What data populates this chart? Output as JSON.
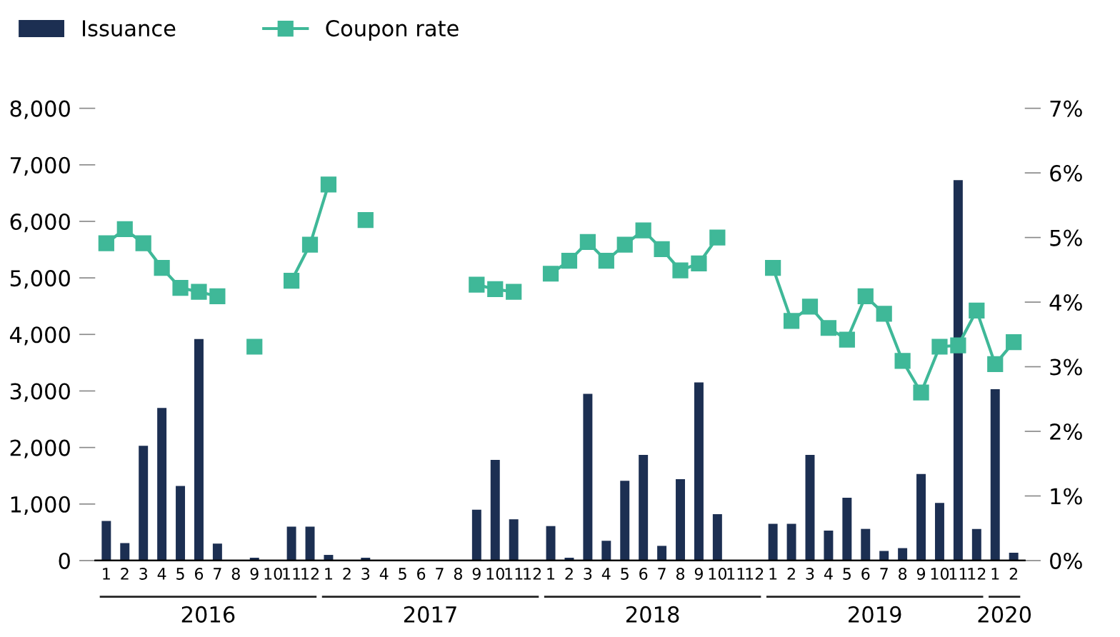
{
  "chart_data": {
    "type": "bar",
    "categories": [
      "1",
      "2",
      "3",
      "4",
      "5",
      "6",
      "7",
      "8",
      "9",
      "10",
      "11",
      "12",
      "1",
      "2",
      "3",
      "4",
      "5",
      "6",
      "7",
      "8",
      "9",
      "10",
      "11",
      "12",
      "1",
      "2",
      "3",
      "4",
      "5",
      "6",
      "7",
      "8",
      "9",
      "10",
      "11",
      "12",
      "1",
      "2",
      "3",
      "4",
      "5",
      "6",
      "7",
      "8",
      "9",
      "10",
      "11",
      "12",
      "1",
      "2"
    ],
    "series": [
      {
        "name": "Issuance",
        "color": "#1c2f52",
        "values": [
          700,
          310,
          2030,
          2700,
          1320,
          3920,
          300,
          0,
          50,
          0,
          600,
          600,
          100,
          0,
          50,
          0,
          0,
          0,
          0,
          0,
          900,
          1780,
          730,
          0,
          610,
          50,
          2950,
          350,
          1410,
          1870,
          260,
          1440,
          3150,
          820,
          0,
          0,
          650,
          650,
          1870,
          530,
          1110,
          560,
          170,
          220,
          1530,
          1020,
          6730,
          560,
          3030,
          140
        ]
      },
      {
        "name": "Coupon rate",
        "type": "line",
        "axis": "y2",
        "color": "#3fb898",
        "marker": "square",
        "values": [
          4.91,
          5.13,
          4.91,
          4.53,
          4.22,
          4.16,
          4.09,
          null,
          3.31,
          null,
          4.33,
          4.89,
          5.82,
          null,
          5.27,
          null,
          null,
          null,
          null,
          null,
          4.27,
          4.2,
          4.16,
          null,
          4.44,
          4.64,
          4.93,
          4.64,
          4.89,
          5.11,
          4.82,
          4.49,
          4.6,
          5.0,
          null,
          null,
          4.53,
          3.71,
          3.93,
          3.6,
          3.42,
          4.09,
          3.82,
          3.09,
          2.6,
          3.31,
          3.33,
          3.87,
          3.04,
          3.38
        ]
      }
    ],
    "ylim": [
      0,
      8000
    ],
    "yticks": [
      {
        "value": 0,
        "label": "0"
      },
      {
        "value": 1000,
        "label": "1,000"
      },
      {
        "value": 2000,
        "label": "2,000"
      },
      {
        "value": 3000,
        "label": "3,000"
      },
      {
        "value": 4000,
        "label": "4,000"
      },
      {
        "value": 5000,
        "label": "5,000"
      },
      {
        "value": 6000,
        "label": "6,000"
      },
      {
        "value": 7000,
        "label": "7,000"
      },
      {
        "value": 8000,
        "label": "8,000"
      }
    ],
    "y2lim": [
      0,
      7
    ],
    "y2ticks": [
      {
        "value": 0,
        "label": "0%"
      },
      {
        "value": 1,
        "label": "1%"
      },
      {
        "value": 2,
        "label": "2%"
      },
      {
        "value": 3,
        "label": "3%"
      },
      {
        "value": 4,
        "label": "4%"
      },
      {
        "value": 5,
        "label": "5%"
      },
      {
        "value": 6,
        "label": "6%"
      },
      {
        "value": 7,
        "label": "7%"
      }
    ],
    "annotations": [
      "2016",
      "2017",
      "2018",
      "2019",
      "2020"
    ],
    "legend": "top left",
    "grid": false
  }
}
